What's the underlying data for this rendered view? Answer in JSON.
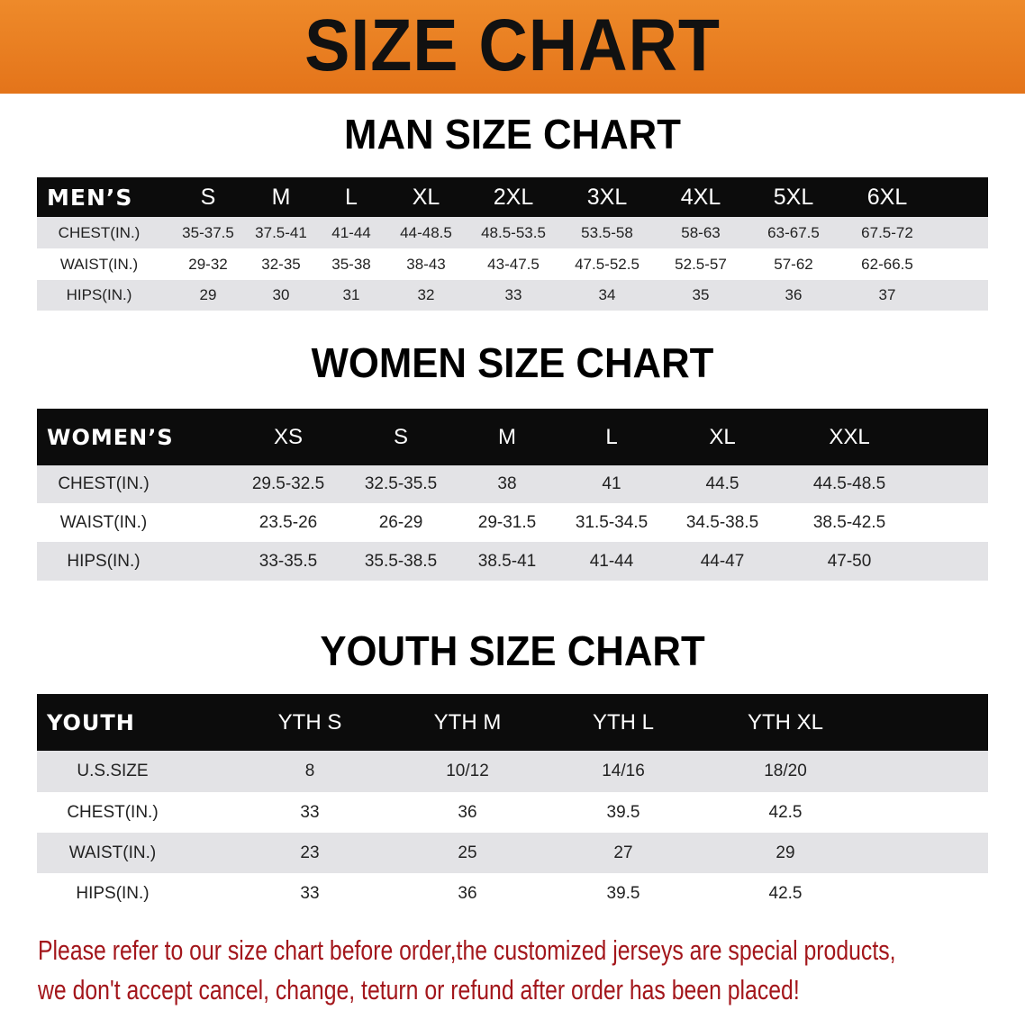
{
  "banner": {
    "title": "SIZE CHART",
    "color": "#e97d22"
  },
  "tables": [
    {
      "title": "MAN SIZE CHART",
      "header": "MEN’S",
      "sizes": [
        "S",
        "M",
        "L",
        "XL",
        "2XL",
        "3XL",
        "4XL",
        "5XL",
        "6XL"
      ],
      "rows": [
        {
          "label": "CHEST(IN.)",
          "values": [
            "35-37.5",
            "37.5-41",
            "41-44",
            "44-48.5",
            "48.5-53.5",
            "53.5-58",
            "58-63",
            "63-67.5",
            "67.5-72"
          ]
        },
        {
          "label": "WAIST(IN.)",
          "values": [
            "29-32",
            "32-35",
            "35-38",
            "38-43",
            "43-47.5",
            "47.5-52.5",
            "52.5-57",
            "57-62",
            "62-66.5"
          ]
        },
        {
          "label": "HIPS(IN.)",
          "values": [
            "29",
            "30",
            "31",
            "32",
            "33",
            "34",
            "35",
            "36",
            "37"
          ]
        }
      ]
    },
    {
      "title": "WOMEN SIZE CHART",
      "header": "WOMEN’S",
      "sizes": [
        "XS",
        "S",
        "M",
        "L",
        "XL",
        "XXL"
      ],
      "rows": [
        {
          "label": "CHEST(IN.)",
          "values": [
            "29.5-32.5",
            "32.5-35.5",
            "38",
            "41",
            "44.5",
            "44.5-48.5"
          ]
        },
        {
          "label": "WAIST(IN.)",
          "values": [
            "23.5-26",
            "26-29",
            "29-31.5",
            "31.5-34.5",
            "34.5-38.5",
            "38.5-42.5"
          ]
        },
        {
          "label": "HIPS(IN.)",
          "values": [
            "33-35.5",
            "35.5-38.5",
            "38.5-41",
            "41-44",
            "44-47",
            "47-50"
          ]
        }
      ]
    },
    {
      "title": "YOUTH SIZE CHART",
      "header": "YOUTH",
      "sizes": [
        "YTH S",
        "YTH M",
        "YTH L",
        "YTH XL"
      ],
      "rows": [
        {
          "label": "U.S.SIZE",
          "values": [
            "8",
            "10/12",
            "14/16",
            "18/20"
          ]
        },
        {
          "label": "CHEST(IN.)",
          "values": [
            "33",
            "36",
            "39.5",
            "42.5"
          ]
        },
        {
          "label": "WAIST(IN.)",
          "values": [
            "23",
            "25",
            "27",
            "29"
          ]
        },
        {
          "label": "HIPS(IN.)",
          "values": [
            "33",
            "36",
            "39.5",
            "42.5"
          ]
        }
      ]
    }
  ],
  "note": {
    "line1": "Please refer to our size chart before order,the customized jerseys are special products,",
    "line2": "we don't accept cancel, change, teturn or refund after order has been placed!",
    "color": "#a3161b"
  }
}
